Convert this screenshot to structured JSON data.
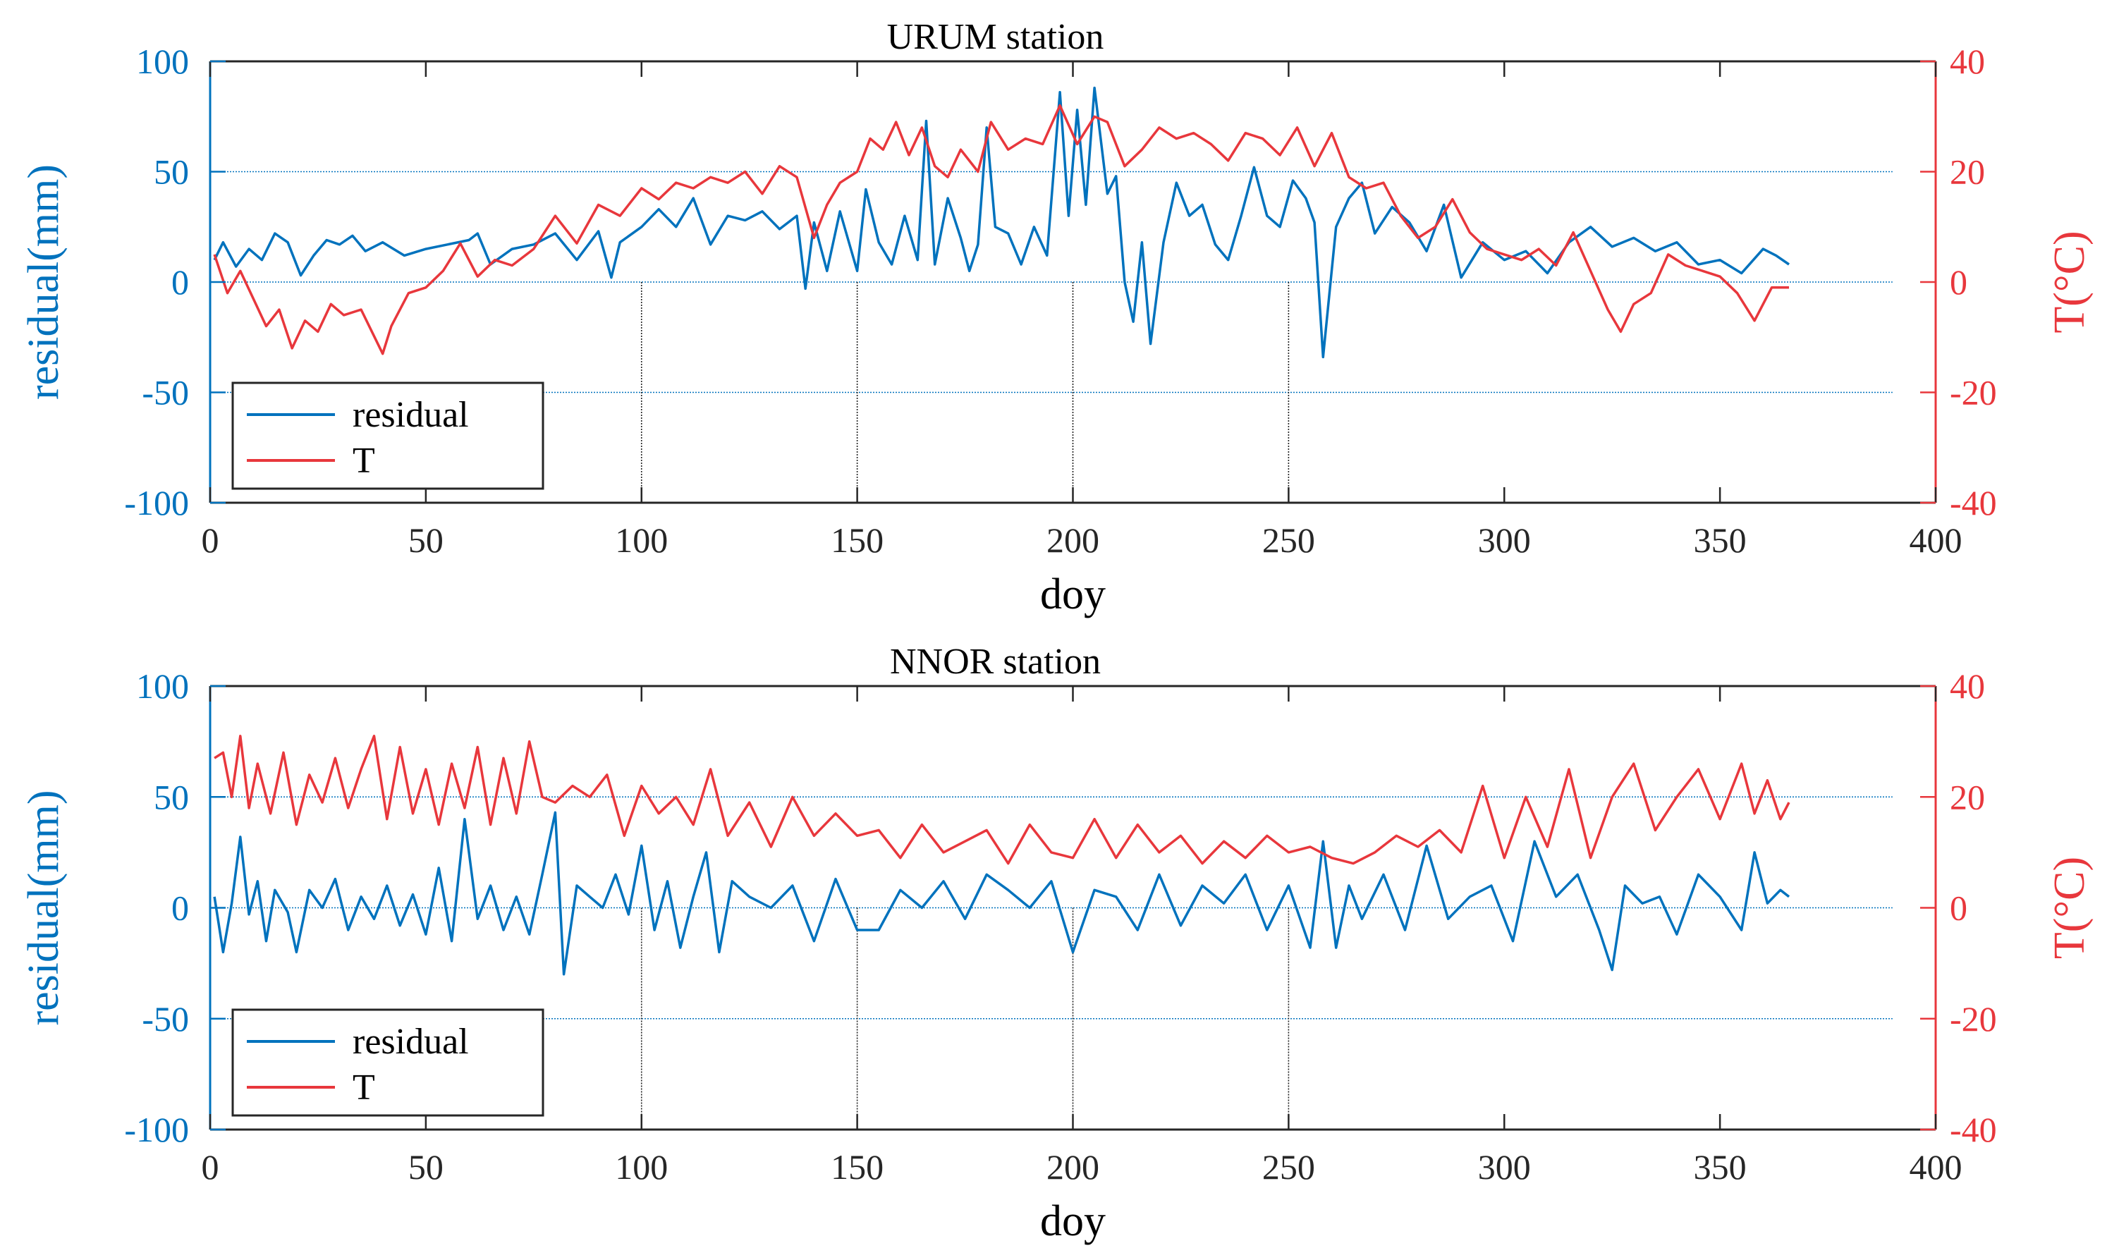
{
  "chart_data": [
    {
      "type": "line",
      "title": "URUM station",
      "xlabel": "doy",
      "ylabel_left": "residual(mm)",
      "ylabel_right": "T(°C)",
      "xlim": [
        0,
        400
      ],
      "ylim_left": [
        -100,
        100
      ],
      "ylim_right": [
        -40,
        40
      ],
      "x_ticks": [
        0,
        50,
        100,
        150,
        200,
        250,
        300,
        350,
        400
      ],
      "y_ticks_left": [
        -100,
        -50,
        0,
        50,
        100
      ],
      "y_ticks_right": [
        -40,
        -20,
        0,
        20,
        40
      ],
      "x_tick_labels": [
        "0",
        "50",
        "100",
        "150",
        "200",
        "250",
        "300",
        "350",
        "400"
      ],
      "y_tick_labels_left": [
        "-100",
        "-50",
        "0",
        "50",
        "100"
      ],
      "y_tick_labels_right": [
        "-40",
        "-20",
        "0",
        "20",
        "40"
      ],
      "legend": [
        "residual",
        "T"
      ],
      "legend_position": "bottom-left",
      "reference_lines_left": [
        -50,
        0,
        50
      ],
      "vertical_markers": [
        100,
        150,
        200,
        250
      ],
      "series": [
        {
          "name": "residual",
          "axis": "left",
          "color": "#0072BD",
          "x": [
            1,
            3,
            6,
            9,
            12,
            15,
            18,
            21,
            24,
            27,
            30,
            33,
            36,
            40,
            45,
            50,
            55,
            60,
            62,
            65,
            70,
            75,
            80,
            85,
            90,
            93,
            95,
            100,
            104,
            108,
            112,
            116,
            120,
            124,
            128,
            132,
            136,
            138,
            140,
            143,
            146,
            150,
            152,
            155,
            158,
            161,
            164,
            166,
            168,
            171,
            174,
            176,
            178,
            180,
            182,
            185,
            188,
            191,
            194,
            197,
            199,
            201,
            203,
            205,
            208,
            210,
            212,
            214,
            216,
            218,
            221,
            224,
            227,
            230,
            233,
            236,
            239,
            242,
            245,
            248,
            251,
            254,
            256,
            258,
            261,
            264,
            267,
            270,
            274,
            278,
            282,
            286,
            290,
            295,
            300,
            305,
            310,
            315,
            320,
            325,
            330,
            335,
            340,
            345,
            350,
            355,
            360,
            363,
            366
          ],
          "y": [
            10,
            18,
            7,
            15,
            10,
            22,
            18,
            3,
            12,
            19,
            17,
            21,
            14,
            18,
            12,
            15,
            17,
            19,
            22,
            8,
            15,
            17,
            22,
            10,
            23,
            2,
            18,
            25,
            33,
            25,
            38,
            17,
            30,
            28,
            32,
            24,
            30,
            -3,
            27,
            5,
            32,
            5,
            42,
            18,
            8,
            30,
            10,
            73,
            8,
            38,
            20,
            5,
            17,
            70,
            25,
            22,
            8,
            25,
            12,
            86,
            30,
            78,
            35,
            88,
            40,
            48,
            0,
            -18,
            18,
            -28,
            18,
            45,
            30,
            35,
            17,
            10,
            30,
            52,
            30,
            25,
            46,
            38,
            27,
            -34,
            25,
            38,
            45,
            22,
            34,
            27,
            14,
            35,
            2,
            18,
            10,
            14,
            4,
            18,
            25,
            16,
            20,
            14,
            18,
            8,
            10,
            4,
            15,
            12,
            8
          ]
        },
        {
          "name": "T",
          "axis": "right",
          "color": "#E8373C",
          "x": [
            1,
            4,
            7,
            10,
            13,
            16,
            19,
            22,
            25,
            28,
            31,
            35,
            40,
            42,
            46,
            50,
            54,
            58,
            62,
            66,
            70,
            75,
            80,
            85,
            90,
            95,
            100,
            104,
            108,
            112,
            116,
            120,
            124,
            128,
            132,
            136,
            140,
            143,
            146,
            150,
            153,
            156,
            159,
            162,
            165,
            168,
            171,
            174,
            178,
            181,
            185,
            189,
            193,
            197,
            201,
            205,
            208,
            212,
            216,
            220,
            224,
            228,
            232,
            236,
            240,
            244,
            248,
            252,
            256,
            260,
            264,
            268,
            272,
            276,
            280,
            284,
            288,
            292,
            296,
            300,
            304,
            308,
            312,
            316,
            320,
            324,
            327,
            330,
            334,
            338,
            342,
            346,
            350,
            354,
            358,
            362,
            366
          ],
          "y": [
            5,
            -2,
            2,
            -3,
            -8,
            -5,
            -12,
            -7,
            -9,
            -4,
            -6,
            -5,
            -13,
            -8,
            -2,
            -1,
            2,
            7,
            1,
            4,
            3,
            6,
            12,
            7,
            14,
            12,
            17,
            15,
            18,
            17,
            19,
            18,
            20,
            16,
            21,
            19,
            8,
            14,
            18,
            20,
            26,
            24,
            29,
            23,
            28,
            21,
            19,
            24,
            20,
            29,
            24,
            26,
            25,
            32,
            25,
            30,
            29,
            21,
            24,
            28,
            26,
            27,
            25,
            22,
            27,
            26,
            23,
            28,
            21,
            27,
            19,
            17,
            18,
            12,
            8,
            10,
            15,
            9,
            6,
            5,
            4,
            6,
            3,
            9,
            2,
            -5,
            -9,
            -4,
            -2,
            5,
            3,
            2,
            1,
            -2,
            -7,
            -1,
            -1
          ]
        }
      ]
    },
    {
      "type": "line",
      "title": "NNOR station",
      "xlabel": "doy",
      "ylabel_left": "residual(mm)",
      "ylabel_right": "T(°C)",
      "xlim": [
        0,
        400
      ],
      "ylim_left": [
        -100,
        100
      ],
      "ylim_right": [
        -40,
        40
      ],
      "x_ticks": [
        0,
        50,
        100,
        150,
        200,
        250,
        300,
        350,
        400
      ],
      "y_ticks_left": [
        -100,
        -50,
        0,
        50,
        100
      ],
      "y_ticks_right": [
        -40,
        -20,
        0,
        20,
        40
      ],
      "x_tick_labels": [
        "0",
        "50",
        "100",
        "150",
        "200",
        "250",
        "300",
        "350",
        "400"
      ],
      "y_tick_labels_left": [
        "-100",
        "-50",
        "0",
        "50",
        "100"
      ],
      "y_tick_labels_right": [
        "-40",
        "-20",
        "0",
        "20",
        "40"
      ],
      "legend": [
        "residual",
        "T"
      ],
      "legend_position": "bottom-left",
      "reference_lines_left": [
        -50,
        0,
        50
      ],
      "vertical_markers": [
        100,
        150,
        200,
        250
      ],
      "series": [
        {
          "name": "residual",
          "axis": "left",
          "color": "#0072BD",
          "x": [
            1,
            3,
            5,
            7,
            9,
            11,
            13,
            15,
            18,
            20,
            23,
            26,
            29,
            32,
            35,
            38,
            41,
            44,
            47,
            50,
            53,
            56,
            59,
            62,
            65,
            68,
            71,
            74,
            77,
            80,
            82,
            85,
            88,
            91,
            94,
            97,
            100,
            103,
            106,
            109,
            112,
            115,
            118,
            121,
            125,
            130,
            135,
            140,
            145,
            150,
            155,
            160,
            165,
            170,
            175,
            180,
            185,
            190,
            195,
            200,
            205,
            210,
            215,
            220,
            225,
            230,
            235,
            240,
            245,
            250,
            255,
            258,
            261,
            264,
            267,
            272,
            277,
            282,
            287,
            292,
            297,
            302,
            307,
            312,
            317,
            322,
            325,
            328,
            332,
            336,
            340,
            345,
            350,
            355,
            358,
            361,
            364,
            366
          ],
          "y": [
            5,
            -20,
            2,
            32,
            -3,
            12,
            -15,
            8,
            -2,
            -20,
            8,
            0,
            13,
            -10,
            5,
            -5,
            10,
            -8,
            6,
            -12,
            18,
            -15,
            40,
            -5,
            10,
            -10,
            5,
            -12,
            15,
            43,
            -30,
            10,
            5,
            0,
            15,
            -3,
            28,
            -10,
            12,
            -18,
            5,
            25,
            -20,
            12,
            5,
            0,
            10,
            -15,
            13,
            -10,
            -10,
            8,
            0,
            12,
            -5,
            15,
            8,
            0,
            12,
            -20,
            8,
            5,
            -10,
            15,
            -8,
            10,
            2,
            15,
            -10,
            10,
            -18,
            30,
            -18,
            10,
            -5,
            15,
            -10,
            28,
            -5,
            5,
            10,
            -15,
            30,
            5,
            15,
            -10,
            -28,
            10,
            2,
            5,
            -12,
            15,
            5,
            -10,
            25,
            2,
            8,
            5
          ]
        },
        {
          "name": "T",
          "axis": "right",
          "color": "#E8373C",
          "x": [
            1,
            3,
            5,
            7,
            9,
            11,
            14,
            17,
            20,
            23,
            26,
            29,
            32,
            35,
            38,
            41,
            44,
            47,
            50,
            53,
            56,
            59,
            62,
            65,
            68,
            71,
            74,
            77,
            80,
            84,
            88,
            92,
            96,
            100,
            104,
            108,
            112,
            116,
            120,
            125,
            130,
            135,
            140,
            145,
            150,
            155,
            160,
            165,
            170,
            175,
            180,
            185,
            190,
            195,
            200,
            205,
            210,
            215,
            220,
            225,
            230,
            235,
            240,
            245,
            250,
            255,
            260,
            265,
            270,
            275,
            280,
            285,
            290,
            295,
            300,
            305,
            310,
            315,
            320,
            325,
            330,
            335,
            340,
            345,
            350,
            355,
            358,
            361,
            364,
            366
          ],
          "y": [
            27,
            28,
            20,
            31,
            18,
            26,
            17,
            28,
            15,
            24,
            19,
            27,
            18,
            25,
            31,
            16,
            29,
            17,
            25,
            15,
            26,
            18,
            29,
            15,
            27,
            17,
            30,
            20,
            19,
            22,
            20,
            24,
            13,
            22,
            17,
            20,
            15,
            25,
            13,
            19,
            11,
            20,
            13,
            17,
            13,
            14,
            9,
            15,
            10,
            12,
            14,
            8,
            15,
            10,
            9,
            16,
            9,
            15,
            10,
            13,
            8,
            12,
            9,
            13,
            10,
            11,
            9,
            8,
            10,
            13,
            11,
            14,
            10,
            22,
            9,
            20,
            11,
            25,
            9,
            20,
            26,
            14,
            20,
            25,
            16,
            26,
            17,
            23,
            16,
            19
          ]
        }
      ]
    }
  ]
}
